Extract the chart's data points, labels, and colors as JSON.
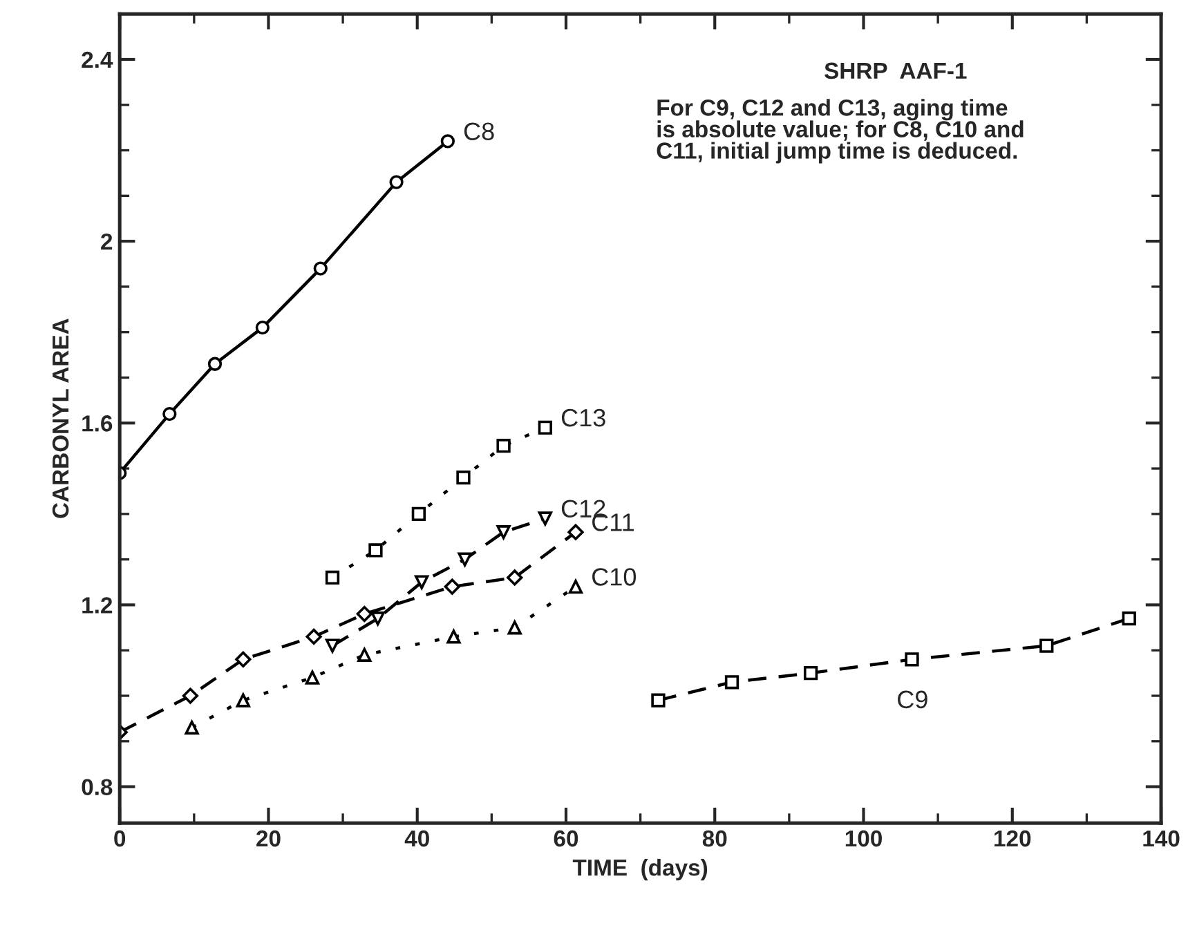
{
  "chart_data": {
    "type": "line",
    "title": "SHRP  AAF-1",
    "annotations": [
      "For C9, C12 and C13, aging time\nis absolute value; for C8, C10 and\nC11, initial jump time is deduced."
    ],
    "xlabel": "TIME  (days)",
    "ylabel": "CARBONYL AREA",
    "xlim": [
      0,
      140
    ],
    "xticks": [
      0,
      20,
      40,
      60,
      80,
      100,
      120,
      140
    ],
    "ylim": [
      0.72,
      2.5
    ],
    "yticks": [
      {
        "value": 0.8,
        "label": "0.8"
      },
      {
        "value": 1.2,
        "label": "1.2"
      },
      {
        "value": 1.6,
        "label": "1.6"
      },
      {
        "value": 2.0,
        "label": "2"
      },
      {
        "value": 2.4,
        "label": "2.4"
      }
    ],
    "grid": false,
    "legend": false,
    "series": [
      {
        "name": "C8",
        "color": "#000000",
        "marker": "circle",
        "line_style": "solid",
        "x": [
          0,
          6.7,
          12.8,
          19.2,
          27.0,
          37.2,
          44.1
        ],
        "values": [
          1.49,
          1.62,
          1.73,
          1.81,
          1.94,
          2.13,
          2.22
        ]
      },
      {
        "name": "C13",
        "color": "#000000",
        "marker": "square",
        "line_style": "dotted",
        "x": [
          28.6,
          34.4,
          40.2,
          46.2,
          51.6,
          57.2
        ],
        "values": [
          1.26,
          1.32,
          1.4,
          1.48,
          1.55,
          1.59
        ]
      },
      {
        "name": "C12",
        "color": "#000000",
        "marker": "triangle_down",
        "line_style": "dashed",
        "x": [
          28.6,
          34.7,
          40.6,
          46.4,
          51.6,
          57.2
        ],
        "values": [
          1.11,
          1.17,
          1.25,
          1.3,
          1.36,
          1.39
        ]
      },
      {
        "name": "C11",
        "color": "#000000",
        "marker": "diamond",
        "line_style": "dashed",
        "x": [
          0,
          9.5,
          16.6,
          26.1,
          32.9,
          44.7,
          53.1,
          61.3
        ],
        "values": [
          0.92,
          1.0,
          1.08,
          1.13,
          1.18,
          1.24,
          1.26,
          1.36
        ]
      },
      {
        "name": "C10",
        "color": "#000000",
        "marker": "triangle",
        "line_style": "dotted",
        "x": [
          9.7,
          16.6,
          25.9,
          32.9,
          44.9,
          53.1,
          61.3
        ],
        "values": [
          0.93,
          0.99,
          1.04,
          1.09,
          1.13,
          1.15,
          1.24
        ]
      },
      {
        "name": "C9",
        "color": "#000000",
        "marker": "square",
        "line_style": "dashed",
        "x": [
          72.4,
          82.3,
          92.9,
          106.5,
          124.6,
          135.7
        ],
        "values": [
          0.99,
          1.03,
          1.05,
          1.08,
          1.11,
          1.17
        ]
      }
    ]
  }
}
